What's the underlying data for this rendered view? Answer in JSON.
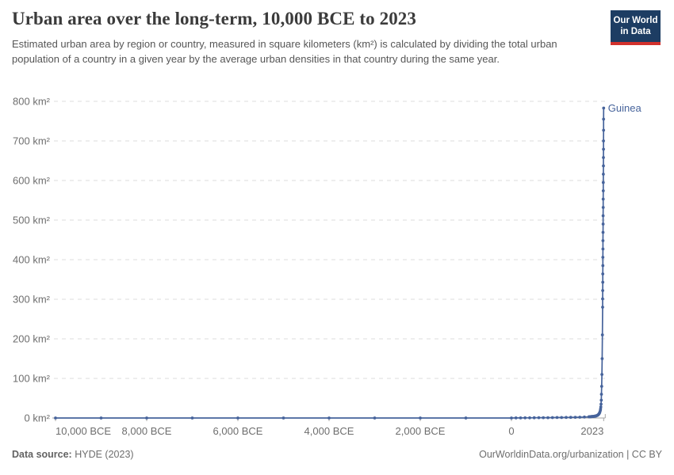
{
  "header": {
    "title": "Urban area over the long-term, 10,000 BCE to 2023",
    "subtitle": "Estimated urban area by region or country, measured in square kilometers (km²) is calculated by dividing the total urban population of a country in a given year by the average urban densities in that country during the same year."
  },
  "logo": {
    "line1": "Our World",
    "line2": "in Data"
  },
  "footer": {
    "source_label": "Data source:",
    "source_value": "HYDE (2023)",
    "credit": "OurWorldinData.org/urbanization | CC BY"
  },
  "colors": {
    "line": "#46639b",
    "gridline": "#dedede",
    "axis": "#a5a5a5",
    "tick_text": "#6e6e6e",
    "logo_navy": "#1d3d63",
    "logo_red": "#d2312c"
  },
  "chart_data": {
    "type": "line",
    "title": "Urban area over the long-term, 10,000 BCE to 2023",
    "xlabel": "",
    "ylabel": "km²",
    "x_range": [
      -10000,
      2023
    ],
    "ylim": [
      0,
      800
    ],
    "grid": "horizontal-dashed",
    "legend_position": "end-of-line-label",
    "x_ticks": [
      {
        "v": -10000,
        "label": "10,000 BCE"
      },
      {
        "v": -8000,
        "label": "8,000 BCE"
      },
      {
        "v": -6000,
        "label": "6,000 BCE"
      },
      {
        "v": -4000,
        "label": "4,000 BCE"
      },
      {
        "v": -2000,
        "label": "2,000 BCE"
      },
      {
        "v": 0,
        "label": "0"
      },
      {
        "v": 2023,
        "label": "2023"
      }
    ],
    "y_ticks": [
      {
        "v": 0,
        "label": "0 km²"
      },
      {
        "v": 100,
        "label": "100 km²"
      },
      {
        "v": 200,
        "label": "200 km²"
      },
      {
        "v": 300,
        "label": "300 km²"
      },
      {
        "v": 400,
        "label": "400 km²"
      },
      {
        "v": 500,
        "label": "500 km²"
      },
      {
        "v": 600,
        "label": "600 km²"
      },
      {
        "v": 700,
        "label": "700 km²"
      },
      {
        "v": 800,
        "label": "800 km²"
      }
    ],
    "series": [
      {
        "name": "Guinea",
        "color": "#46639b",
        "points": [
          [
            -10000,
            0
          ],
          [
            -9000,
            0
          ],
          [
            -8000,
            0
          ],
          [
            -7000,
            0
          ],
          [
            -6000,
            0
          ],
          [
            -5000,
            0
          ],
          [
            -4000,
            0
          ],
          [
            -3000,
            0
          ],
          [
            -2000,
            0
          ],
          [
            -1000,
            0
          ],
          [
            0,
            0
          ],
          [
            100,
            0.2
          ],
          [
            200,
            0.3
          ],
          [
            300,
            0.4
          ],
          [
            400,
            0.5
          ],
          [
            500,
            0.6
          ],
          [
            600,
            0.7
          ],
          [
            700,
            0.8
          ],
          [
            800,
            0.9
          ],
          [
            900,
            1.0
          ],
          [
            1000,
            1.1
          ],
          [
            1100,
            1.2
          ],
          [
            1200,
            1.4
          ],
          [
            1300,
            1.6
          ],
          [
            1400,
            1.8
          ],
          [
            1500,
            2.0
          ],
          [
            1600,
            2.5
          ],
          [
            1700,
            3.0
          ],
          [
            1710,
            3.1
          ],
          [
            1720,
            3.2
          ],
          [
            1730,
            3.3
          ],
          [
            1740,
            3.4
          ],
          [
            1750,
            3.5
          ],
          [
            1760,
            3.6
          ],
          [
            1770,
            3.7
          ],
          [
            1780,
            3.8
          ],
          [
            1790,
            3.9
          ],
          [
            1800,
            4.0
          ],
          [
            1810,
            4.2
          ],
          [
            1820,
            4.4
          ],
          [
            1830,
            4.6
          ],
          [
            1840,
            4.8
          ],
          [
            1850,
            5.0
          ],
          [
            1860,
            5.5
          ],
          [
            1870,
            6.0
          ],
          [
            1880,
            6.5
          ],
          [
            1890,
            7.0
          ],
          [
            1900,
            8.0
          ],
          [
            1910,
            9.0
          ],
          [
            1920,
            10.5
          ],
          [
            1930,
            12.5
          ],
          [
            1940,
            15.0
          ],
          [
            1950,
            19
          ],
          [
            1955,
            23
          ],
          [
            1960,
            28
          ],
          [
            1965,
            35
          ],
          [
            1970,
            45
          ],
          [
            1975,
            60
          ],
          [
            1980,
            80
          ],
          [
            1985,
            110
          ],
          [
            1990,
            150
          ],
          [
            1995,
            210
          ],
          [
            2000,
            280
          ],
          [
            2001,
            301
          ],
          [
            2002,
            322
          ],
          [
            2003,
            343
          ],
          [
            2004,
            364
          ],
          [
            2005,
            385
          ],
          [
            2006,
            406
          ],
          [
            2007,
            427
          ],
          [
            2008,
            448
          ],
          [
            2009,
            469
          ],
          [
            2010,
            490
          ],
          [
            2011,
            511
          ],
          [
            2012,
            532
          ],
          [
            2013,
            553
          ],
          [
            2014,
            574
          ],
          [
            2015,
            595
          ],
          [
            2016,
            616
          ],
          [
            2017,
            637
          ],
          [
            2018,
            658
          ],
          [
            2019,
            679
          ],
          [
            2020,
            700
          ],
          [
            2021,
            727
          ],
          [
            2022,
            755
          ],
          [
            2023,
            783
          ]
        ]
      }
    ]
  }
}
